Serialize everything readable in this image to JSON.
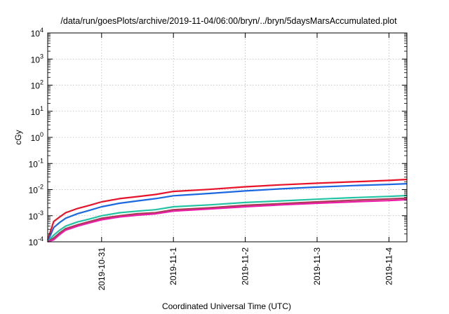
{
  "chart_data": {
    "type": "line",
    "title": "/data/run/goesPlots/archive/2019-11-04/06:00/bryn/../bryn/5daysMarsAccumulated.plot",
    "xlabel": "Coordinated Universal Time (UTC)",
    "ylabel": "cGy",
    "y_scale": "log",
    "ylim": [
      0.0001,
      10000
    ],
    "y_ticks": [
      {
        "base": "10",
        "exp": "-4"
      },
      {
        "base": "10",
        "exp": "-3"
      },
      {
        "base": "10",
        "exp": "-2"
      },
      {
        "base": "10",
        "exp": "-1"
      },
      {
        "base": "10",
        "exp": "0"
      },
      {
        "base": "10",
        "exp": "1"
      },
      {
        "base": "10",
        "exp": "2"
      },
      {
        "base": "10",
        "exp": "3"
      },
      {
        "base": "10",
        "exp": "4"
      }
    ],
    "xlim": [
      "2019-10-30T06:00",
      "2019-11-04T06:00"
    ],
    "x_ticks": [
      "2019-10-31",
      "2019-11-1",
      "2019-11-2",
      "2019-11-3",
      "2019-11-4"
    ],
    "x_tick_dates": [
      "2019-10-31T00:00",
      "2019-11-01T00:00",
      "2019-11-02T00:00",
      "2019-11-03T00:00",
      "2019-11-04T00:00"
    ],
    "grid": true,
    "legend": "none",
    "x": [
      "2019-10-30T06:00",
      "2019-10-30T08:00",
      "2019-10-30T10:00",
      "2019-10-30T12:00",
      "2019-10-30T16:00",
      "2019-10-30T20:00",
      "2019-10-31T00:00",
      "2019-10-31T06:00",
      "2019-10-31T12:00",
      "2019-10-31T18:00",
      "2019-11-01T00:00",
      "2019-11-01T12:00",
      "2019-11-02T00:00",
      "2019-11-02T12:00",
      "2019-11-03T00:00",
      "2019-11-03T12:00",
      "2019-11-04T00:00",
      "2019-11-04T06:00"
    ],
    "series": [
      {
        "color": "#e8132a",
        "values": [
          0.00012,
          0.0006,
          0.0009,
          0.0013,
          0.0019,
          0.0025,
          0.0034,
          0.0045,
          0.0054,
          0.0065,
          0.0085,
          0.0102,
          0.0128,
          0.0152,
          0.0175,
          0.0198,
          0.0225,
          0.0245
        ]
      },
      {
        "color": "#1c68e0",
        "values": [
          0.0001,
          0.00035,
          0.00055,
          0.0008,
          0.0012,
          0.0016,
          0.0022,
          0.003,
          0.0037,
          0.0045,
          0.0058,
          0.0071,
          0.0089,
          0.0107,
          0.0125,
          0.0142,
          0.0158,
          0.0168
        ]
      },
      {
        "color": "#22c4a4",
        "values": [
          0.0001,
          0.00018,
          0.00028,
          0.0004,
          0.00058,
          0.00075,
          0.001,
          0.0013,
          0.0015,
          0.0017,
          0.0022,
          0.0026,
          0.0032,
          0.0037,
          0.0043,
          0.0049,
          0.0055,
          0.0059
        ]
      },
      {
        "color": "#a83c52",
        "values": [
          0.0001,
          0.00014,
          0.00022,
          0.00032,
          0.00045,
          0.0006,
          0.0008,
          0.001,
          0.0012,
          0.0013,
          0.0017,
          0.002,
          0.0025,
          0.0029,
          0.0034,
          0.0039,
          0.0044,
          0.0047
        ]
      },
      {
        "color": "#ea1ea6",
        "values": [
          0.0001,
          0.00012,
          0.00019,
          0.00028,
          0.0004,
          0.00053,
          0.0007,
          0.0009,
          0.00105,
          0.00118,
          0.0015,
          0.0018,
          0.0022,
          0.0026,
          0.003,
          0.0034,
          0.0038,
          0.0041
        ]
      }
    ]
  }
}
